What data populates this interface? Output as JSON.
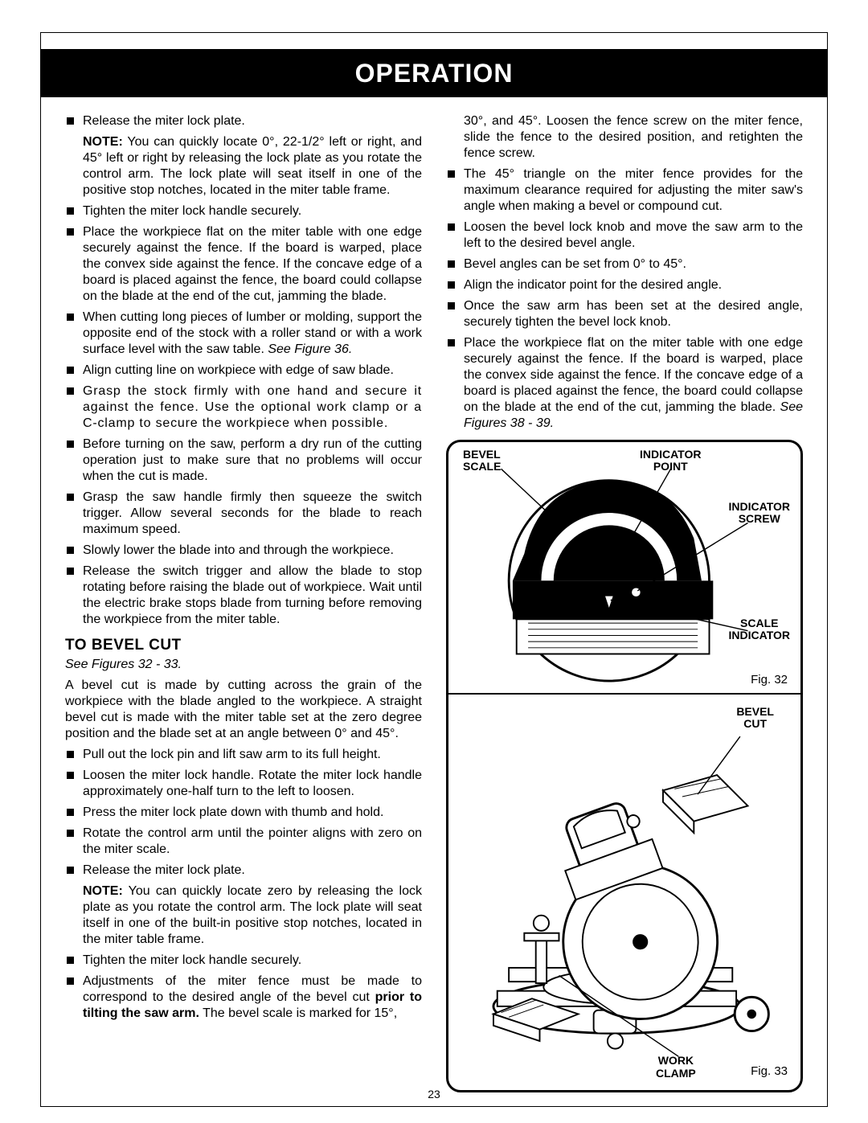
{
  "header": {
    "title": "OPERATION"
  },
  "page_number": "23",
  "left_column": {
    "bullets_a": [
      "Release the miter lock plate."
    ],
    "note_a": {
      "label": "NOTE:",
      "text": " You can quickly locate 0°, 22-1/2° left or right, and 45° left or right by releasing the lock plate as you rotate the control arm. The lock plate will seat itself in one of the positive stop notches, located in the miter table frame."
    },
    "bullets_b": [
      "Tighten the miter lock handle securely.",
      "Place the workpiece flat on the miter table with one edge securely against the fence. If the board is warped, place the convex side against the fence. If the concave edge of a board is placed against the fence, the board could collapse on the blade at the end of the cut, jamming the blade.",
      "When cutting long pieces of lumber or molding, support the opposite end of the stock with a roller stand or with a work surface level with the saw table. ",
      "Align cutting line on workpiece with edge of saw blade.",
      "Grasp the stock firmly with one hand and secure it against the fence. Use the optional work clamp or a C-clamp to secure the workpiece when possible.",
      "Before turning on the saw, perform a dry run of the cutting operation just to make sure that no problems will occur when the cut is made.",
      "Grasp the saw handle firmly then squeeze the switch trigger. Allow several seconds for the blade to reach maximum speed.",
      "Slowly lower the blade into and through the workpiece.",
      "Release the switch trigger and allow the blade to stop rotating before raising the blade out of workpiece. Wait until the electric brake stops blade from turning before removing the workpiece from the miter table."
    ],
    "see_fig_36": "See Figure 36.",
    "section_heading": "TO BEVEL CUT",
    "see_figs": "See Figures 32 - 33.",
    "para_bevel": "A bevel cut is made by cutting across the grain of the workpiece with the blade angled to the workpiece. A straight bevel cut is made with the miter table set at the zero degree position and the blade set at an angle between 0° and 45°.",
    "bullets_c": [
      "Pull out the lock pin and lift saw arm to its full height.",
      "Loosen the miter lock handle. Rotate the miter lock handle approximately one-half turn to the left to loosen.",
      "Press the miter lock plate down with thumb and hold.",
      "Rotate the control arm until the pointer aligns with zero on the miter scale.",
      "Release the miter lock plate."
    ],
    "note_b": {
      "label": "NOTE:",
      "text": " You can quickly locate zero by releasing the lock plate as you rotate the control arm. The lock plate will seat itself in one of the built-in positive stop notches, located in the miter table frame."
    },
    "bullets_d_1": "Tighten the miter lock handle securely.",
    "bullets_d_2a": "Adjustments of the miter fence must be made to correspond to the desired angle of the bevel cut ",
    "bullets_d_2b": "prior to tilting the saw arm.",
    "bullets_d_2c": " The bevel scale is marked for 15°,"
  },
  "right_column": {
    "cont_text": "30°, and 45°. Loosen the fence screw on the miter fence, slide the fence to the desired position, and retighten the fence screw.",
    "bullets_a": [
      "The 45° triangle on the miter fence provides for the maximum clearance required for adjusting the miter saw's angle when making a bevel or compound cut.",
      "Loosen the bevel lock knob and move the saw arm to the left to the desired bevel angle.",
      "Bevel angles can be set from 0° to 45°.",
      "Align the indicator point for the desired angle.",
      "Once the saw arm has been set at the desired angle, securely tighten the bevel lock knob."
    ],
    "bullet_last_a": "Place the workpiece flat on the miter table with one edge securely against the fence. If the board is warped, place the convex side against the fence. If the concave edge of a board is placed against the fence, the board could collapse on the blade at the end of the cut, jamming the blade. ",
    "bullet_last_b": "See Figures 38 - 39."
  },
  "figure": {
    "labels": {
      "bevel_scale": "BEVEL\nSCALE",
      "indicator_point": "INDICATOR\nPOINT",
      "indicator_screw": "INDICATOR\nSCREW",
      "scale_indicator": "SCALE\nINDICATOR",
      "bevel_cut": "BEVEL\nCUT",
      "work_clamp": "WORK\nCLAMP"
    },
    "fig32": "Fig. 32",
    "fig33": "Fig. 33"
  }
}
